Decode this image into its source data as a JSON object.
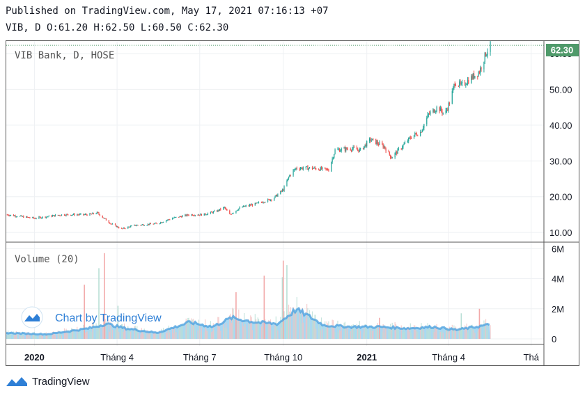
{
  "header": {
    "published": "Published on TradingView.com, May 17, 2021 07:16:13 +07",
    "ohlc": "VIB, D O:61.20 H:62.50 L:60.50 C:62.30"
  },
  "footer": {
    "brand": "TradingView"
  },
  "chart_data": {
    "type": "candlestick",
    "symbol_label": "VIB Bank, D, HOSE",
    "last_price": 62.3,
    "last_price_label": "62.30",
    "price_axis": {
      "ylim": [
        7.5,
        63.5
      ],
      "ticks": [
        10,
        20,
        30,
        40,
        50,
        60
      ],
      "tick_labels": [
        "10.00",
        "20.00",
        "30.00",
        "40.00",
        "50.00",
        "60.00"
      ]
    },
    "volume_pane": {
      "title": "Volume (20)",
      "ylim": [
        0,
        6200000
      ],
      "ticks": [
        0,
        2000000,
        4000000,
        6000000
      ],
      "tick_labels": [
        "0",
        "2M",
        "4M",
        "6M"
      ]
    },
    "time_axis": {
      "start": "2019-12-01",
      "end": "2021-07-15",
      "labels": [
        {
          "date": "2020-01-01",
          "text": "2020",
          "bold": true
        },
        {
          "date": "2020-04-01",
          "text": "Tháng 4",
          "bold": false
        },
        {
          "date": "2020-07-01",
          "text": "Tháng 7",
          "bold": false
        },
        {
          "date": "2020-10-01",
          "text": "Tháng 10",
          "bold": false
        },
        {
          "date": "2021-01-01",
          "text": "2021",
          "bold": true
        },
        {
          "date": "2021-04-01",
          "text": "Tháng 4",
          "bold": false
        },
        {
          "date": "2021-07-01",
          "text": "Thá",
          "bold": false
        }
      ]
    },
    "price_path": [
      [
        "2019-12-01",
        15.0
      ],
      [
        "2020-01-01",
        14.0
      ],
      [
        "2020-02-01",
        15.0
      ],
      [
        "2020-03-01",
        15.0
      ],
      [
        "2020-03-10",
        15.5
      ],
      [
        "2020-03-25",
        12.5
      ],
      [
        "2020-04-06",
        11.0
      ],
      [
        "2020-04-20",
        12.0
      ],
      [
        "2020-05-15",
        12.5
      ],
      [
        "2020-06-01",
        14.0
      ],
      [
        "2020-06-20",
        15.0
      ],
      [
        "2020-07-05",
        15.0
      ],
      [
        "2020-07-20",
        16.0
      ],
      [
        "2020-07-28",
        17.0
      ],
      [
        "2020-08-03",
        15.0
      ],
      [
        "2020-08-15",
        17.0
      ],
      [
        "2020-09-01",
        18.0
      ],
      [
        "2020-09-20",
        19.5
      ],
      [
        "2020-10-01",
        22.0
      ],
      [
        "2020-10-08",
        26.0
      ],
      [
        "2020-10-15",
        28.0
      ],
      [
        "2020-11-01",
        28.0
      ],
      [
        "2020-11-20",
        27.5
      ],
      [
        "2020-11-27",
        33.0
      ],
      [
        "2020-12-15",
        33.5
      ],
      [
        "2020-12-25",
        33.0
      ],
      [
        "2021-01-05",
        36.0
      ],
      [
        "2021-01-20",
        34.0
      ],
      [
        "2021-01-28",
        31.0
      ],
      [
        "2021-02-05",
        33.0
      ],
      [
        "2021-02-20",
        37.0
      ],
      [
        "2021-03-01",
        38.0
      ],
      [
        "2021-03-10",
        43.0
      ],
      [
        "2021-03-20",
        45.0
      ],
      [
        "2021-03-28",
        43.0
      ],
      [
        "2021-04-03",
        47.0
      ],
      [
        "2021-04-08",
        52.0
      ],
      [
        "2021-04-15",
        51.0
      ],
      [
        "2021-04-25",
        53.0
      ],
      [
        "2021-05-05",
        55.0
      ],
      [
        "2021-05-12",
        60.0
      ],
      [
        "2021-05-17",
        62.3
      ]
    ],
    "volume_avg_path": [
      [
        "2019-12-01",
        400000
      ],
      [
        "2020-01-15",
        300000
      ],
      [
        "2020-03-01",
        700000
      ],
      [
        "2020-03-20",
        1000000
      ],
      [
        "2020-04-10",
        700000
      ],
      [
        "2020-05-15",
        400000
      ],
      [
        "2020-06-20",
        1100000
      ],
      [
        "2020-07-15",
        800000
      ],
      [
        "2020-08-05",
        1400000
      ],
      [
        "2020-09-01",
        1100000
      ],
      [
        "2020-09-25",
        1000000
      ],
      [
        "2020-10-15",
        1950000
      ],
      [
        "2020-10-25",
        1650000
      ],
      [
        "2020-11-15",
        900000
      ],
      [
        "2020-12-15",
        800000
      ],
      [
        "2021-01-15",
        800000
      ],
      [
        "2021-02-15",
        700000
      ],
      [
        "2021-03-15",
        800000
      ],
      [
        "2021-04-10",
        600000
      ],
      [
        "2021-05-17",
        950000
      ]
    ],
    "volume_spikes": [
      [
        "2020-03-18",
        5700000
      ],
      [
        "2020-03-12",
        4700000
      ],
      [
        "2020-02-25",
        3600000
      ],
      [
        "2020-04-02",
        2200000
      ],
      [
        "2020-08-10",
        3100000
      ],
      [
        "2020-09-30",
        4100000
      ],
      [
        "2020-10-01",
        5200000
      ],
      [
        "2020-10-05",
        4900000
      ],
      [
        "2020-09-10",
        4200000
      ],
      [
        "2020-11-05",
        1600000
      ],
      [
        "2021-01-15",
        1400000
      ],
      [
        "2021-04-15",
        1700000
      ],
      [
        "2021-05-05",
        2000000
      ]
    ],
    "colors": {
      "up": "#26a69a",
      "down": "#ef5350",
      "volume_fill": "#8ccbed",
      "volume_line": "#4fa3e0",
      "label_bg": "#4f9a6a"
    },
    "watermark": "Chart by TradingView"
  }
}
